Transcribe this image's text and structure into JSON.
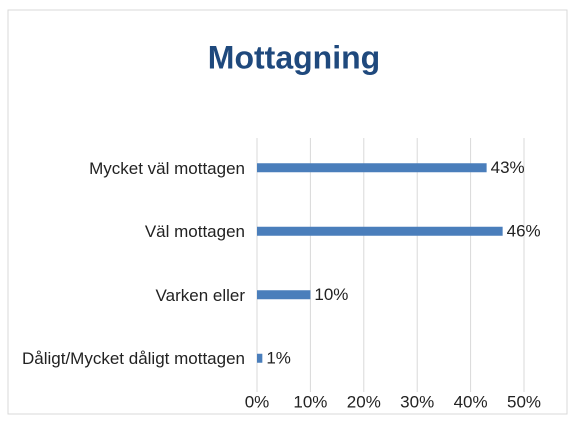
{
  "chart_data": {
    "type": "bar",
    "orientation": "horizontal",
    "title": "Mottagning",
    "categories": [
      "Mycket väl mottagen",
      "Väl mottagen",
      "Varken eller",
      "Dåligt/Mycket dåligt mottagen"
    ],
    "values": [
      43,
      46,
      10,
      1
    ],
    "value_labels": [
      "43%",
      "46%",
      "10%",
      "1%"
    ],
    "color": "#4a7ebb",
    "xlim": [
      0,
      50
    ],
    "xticks": [
      {
        "value": 0,
        "label": "0%"
      },
      {
        "value": 10,
        "label": "10%"
      },
      {
        "value": 20,
        "label": "20%"
      },
      {
        "value": 30,
        "label": "30%"
      },
      {
        "value": 40,
        "label": "40%"
      },
      {
        "value": 50,
        "label": "50%"
      }
    ],
    "grid": true
  }
}
